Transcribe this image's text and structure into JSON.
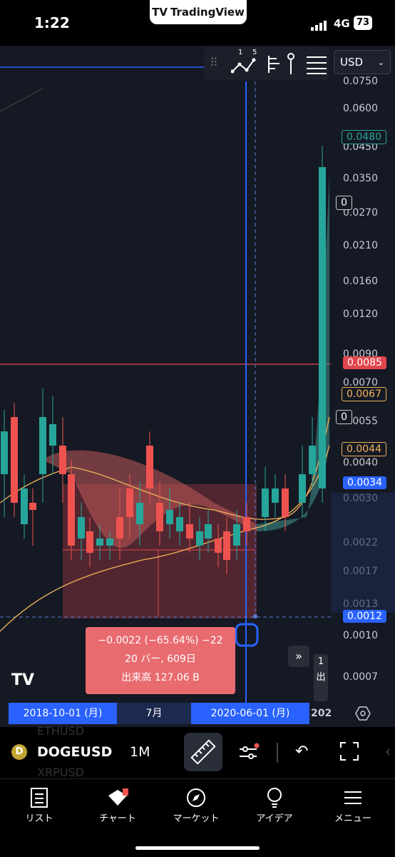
{
  "status": {
    "time": "1:22",
    "network": "4G",
    "battery": "73",
    "app_pill": "TradingView"
  },
  "toolbar": {
    "currency": "USD",
    "indicator_nums": [
      "1",
      "5"
    ]
  },
  "price_axis": [
    "0.0750",
    "0.0600",
    "0.0450",
    "0.0350",
    "0.0270",
    "0.0210",
    "0.0160",
    "0.0120",
    "0.0090",
    "0.0070",
    "0.0055",
    "0.0040",
    "0.0030",
    "0.0022",
    "0.0017",
    "0.0013",
    "0.0010",
    "0.0007"
  ],
  "price_boxes": {
    "last": "0.0480",
    "zero1": "0",
    "red_line": "0.0085",
    "ma_orange1": "0.0067",
    "zero2": "0",
    "ma_orange2": "0.0044",
    "blue_hl": "0.0034",
    "crosshair": "0.0012"
  },
  "measure": {
    "line1": "−0.0022 (−65.64%) −22",
    "line2": "20 バー, 609日",
    "line3": "出来高 127.06 B"
  },
  "time_axis": {
    "start": "2018-10-01 (月)",
    "mid": "7月",
    "end": "2020-06-01 (月)",
    "right": "202"
  },
  "side_partial": [
    "1",
    "出"
  ],
  "symbol": {
    "name": "DOGEUSD",
    "interval": "1M",
    "ghost_above": "ETHUSD",
    "ghost_below": "XRPUSD"
  },
  "nav": [
    {
      "label": "リスト",
      "icon": "list-icon"
    },
    {
      "label": "チャート",
      "icon": "chart-icon"
    },
    {
      "label": "マーケット",
      "icon": "compass-icon"
    },
    {
      "label": "アイデア",
      "icon": "lightbulb-icon"
    },
    {
      "label": "メニュー",
      "icon": "menu-icon"
    }
  ],
  "colors": {
    "up": "#26a69a",
    "down": "#ef5350",
    "accent_blue": "#2962ff",
    "bg": "#151924"
  }
}
